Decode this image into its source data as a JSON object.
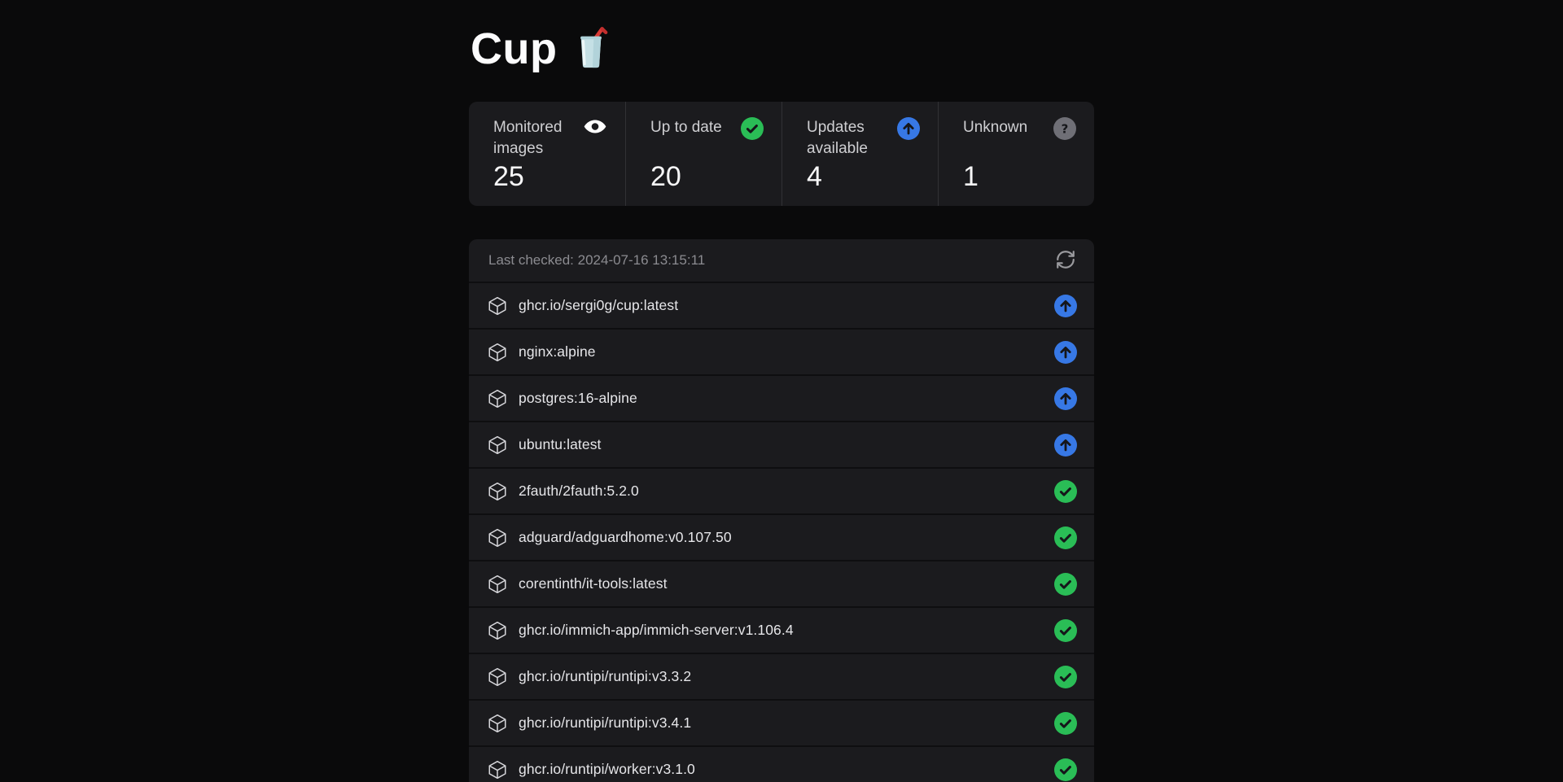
{
  "header": {
    "title": "Cup",
    "logo_icon": "cup-with-straw-icon"
  },
  "stats": [
    {
      "label": "Monitored images",
      "value": "25",
      "icon": "eye-icon",
      "icon_color": "#ffffff"
    },
    {
      "label": "Up to date",
      "value": "20",
      "icon": "check-circle-icon",
      "icon_color": "#2abd56"
    },
    {
      "label": "Updates available",
      "value": "4",
      "icon": "arrow-up-circle-icon",
      "icon_color": "#3778e5"
    },
    {
      "label": "Unknown",
      "value": "1",
      "icon": "question-circle-icon",
      "icon_color": "#6f6f76"
    }
  ],
  "panel": {
    "last_checked": "Last checked: 2024-07-16 13:15:11",
    "refresh_icon": "refresh-icon",
    "items": [
      {
        "name": "ghcr.io/sergi0g/cup:latest",
        "status": "update-available"
      },
      {
        "name": "nginx:alpine",
        "status": "update-available"
      },
      {
        "name": "postgres:16-alpine",
        "status": "update-available"
      },
      {
        "name": "ubuntu:latest",
        "status": "update-available"
      },
      {
        "name": "2fauth/2fauth:5.2.0",
        "status": "up-to-date"
      },
      {
        "name": "adguard/adguardhome:v0.107.50",
        "status": "up-to-date"
      },
      {
        "name": "corentinth/it-tools:latest",
        "status": "up-to-date"
      },
      {
        "name": "ghcr.io/immich-app/immich-server:v1.106.4",
        "status": "up-to-date"
      },
      {
        "name": "ghcr.io/runtipi/runtipi:v3.3.2",
        "status": "up-to-date"
      },
      {
        "name": "ghcr.io/runtipi/runtipi:v3.4.1",
        "status": "up-to-date"
      },
      {
        "name": "ghcr.io/runtipi/worker:v3.1.0",
        "status": "up-to-date"
      }
    ]
  },
  "colors": {
    "page_bg": "#0a0a0b",
    "panel_bg": "#1b1b1e",
    "status_up_to_date": "#2abd56",
    "status_update_available": "#3778e5",
    "status_unknown": "#6f6f76"
  }
}
